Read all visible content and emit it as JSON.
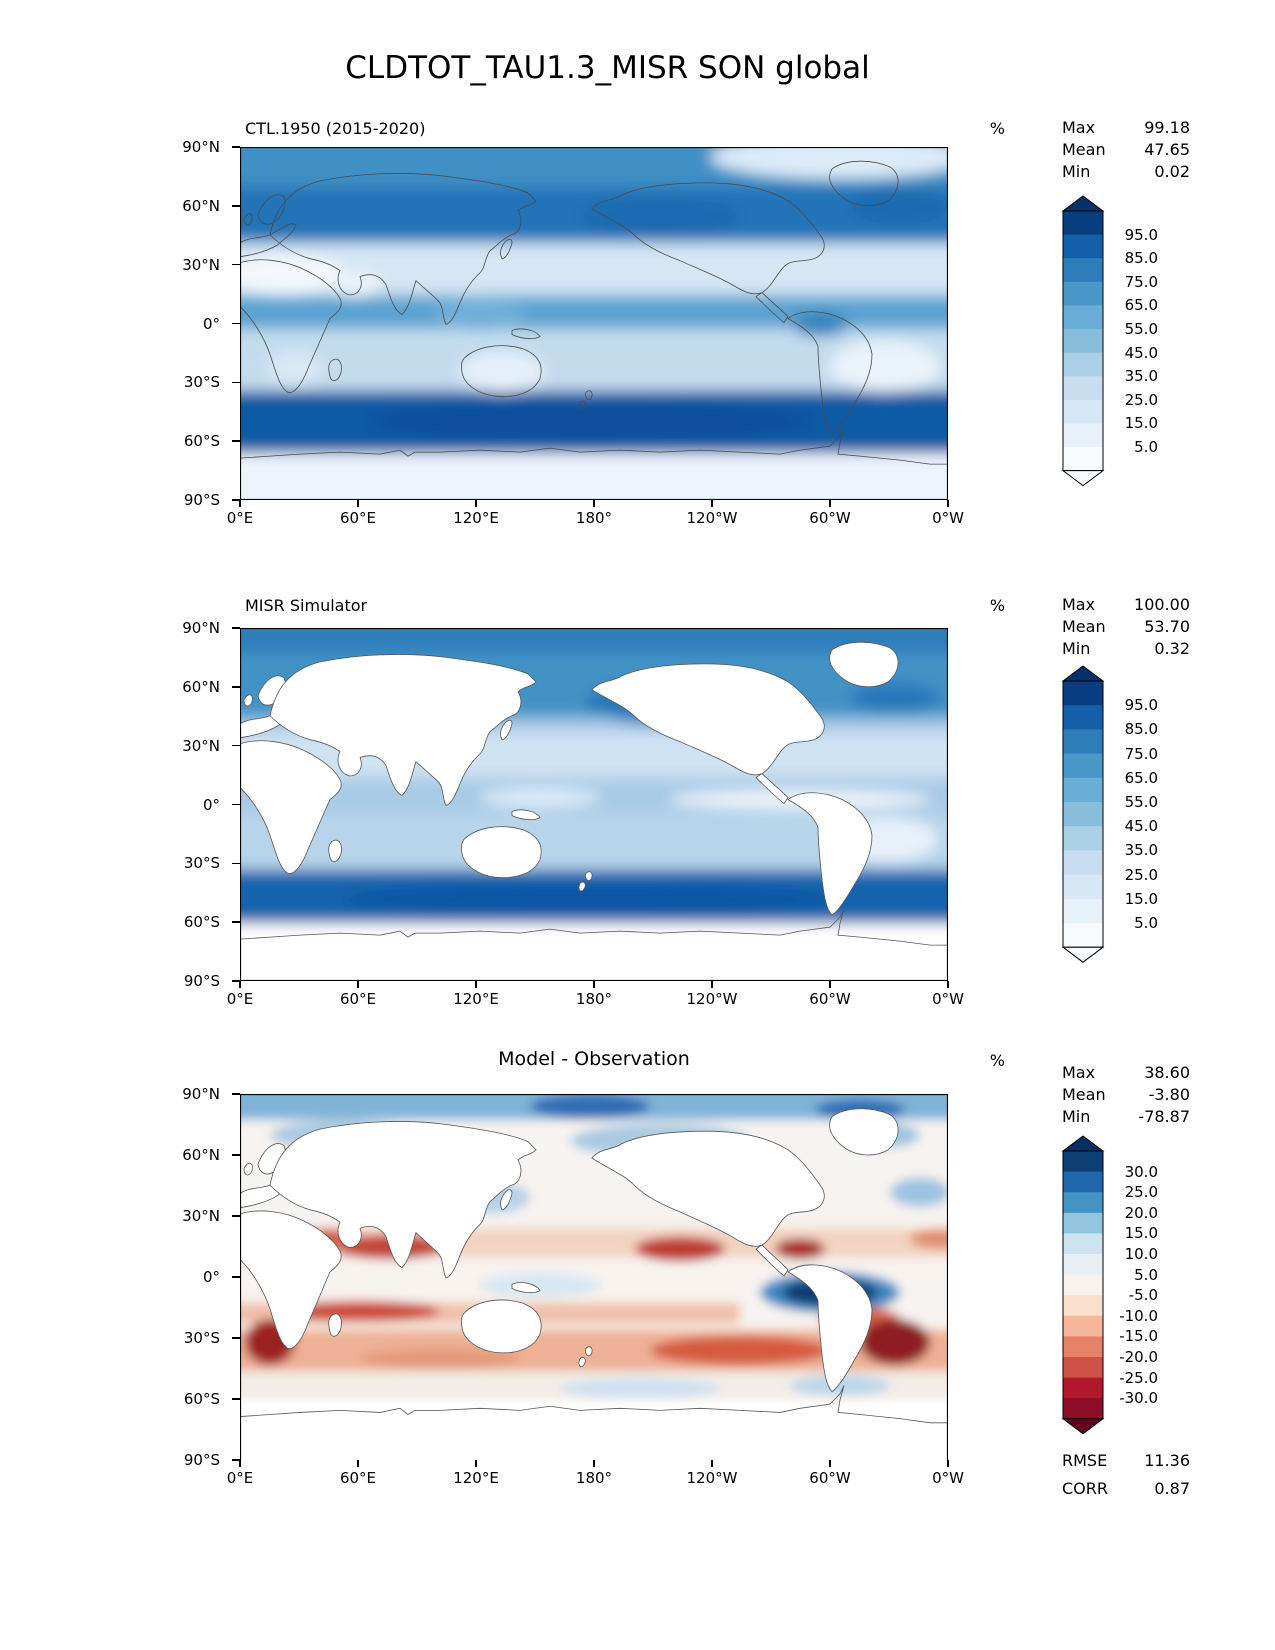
{
  "figure": {
    "title": "CLDTOT_TAU1.3_MISR SON global"
  },
  "axes": {
    "lat_ticks": [
      "90°N",
      "60°N",
      "30°N",
      "0°",
      "30°S",
      "60°S",
      "90°S"
    ],
    "lon_ticks": [
      "0°E",
      "60°E",
      "120°E",
      "180°",
      "120°W",
      "60°W",
      "0°W"
    ]
  },
  "panels": {
    "model": {
      "title": "CTL.1950 (2015-2020)",
      "unit": "%",
      "stats": {
        "max_label": "Max",
        "max": "99.18",
        "mean_label": "Mean",
        "mean": "47.65",
        "min_label": "Min",
        "min": "0.02"
      }
    },
    "obs": {
      "title": "MISR Simulator",
      "unit": "%",
      "stats": {
        "max_label": "Max",
        "max": "100.00",
        "mean_label": "Mean",
        "mean": "53.70",
        "min_label": "Min",
        "min": "0.32"
      }
    },
    "diff": {
      "title": "Model - Observation",
      "unit": "%",
      "stats": {
        "max_label": "Max",
        "max": "38.60",
        "mean_label": "Mean",
        "mean": "-3.80",
        "min_label": "Min",
        "min": "-78.87"
      },
      "metrics": {
        "rmse_label": "RMSE",
        "rmse": "11.36",
        "corr_label": "CORR",
        "corr": "0.87"
      }
    }
  },
  "colorbars": {
    "blues": {
      "top_arrow": "#08306b",
      "bottom_arrow": "#f7fbff",
      "segments_top_to_bottom": [
        "#083d7f",
        "#1460a8",
        "#2e7ebc",
        "#4a98c9",
        "#68aed6",
        "#88bedc",
        "#abd0e6",
        "#c8ddf0",
        "#d8e7f5",
        "#e7f1fa",
        "#f7fbff"
      ],
      "ticks": [
        "95.0",
        "85.0",
        "75.0",
        "65.0",
        "55.0",
        "45.0",
        "35.0",
        "25.0",
        "15.0",
        "5.0"
      ]
    },
    "rdbu": {
      "top_arrow": "#053061",
      "bottom_arrow": "#67001f",
      "segments_top_to_bottom": [
        "#0d3f74",
        "#2166ac",
        "#4393c3",
        "#92c5de",
        "#cde3f0",
        "#e8f0f6",
        "#f9f1ec",
        "#fbdfcd",
        "#f5b79b",
        "#e58267",
        "#cf5246",
        "#b2182b",
        "#8c0d25"
      ],
      "ticks": [
        "30.0",
        "25.0",
        "20.0",
        "15.0",
        "10.0",
        "5.0",
        "-5.0",
        "-10.0",
        "-15.0",
        "-20.0",
        "-25.0",
        "-30.0"
      ]
    }
  },
  "chart_data": [
    {
      "type": "heatmap",
      "panel": "top",
      "title": "CTL.1950 (2015-2020)",
      "variable": "CLDTOT_TAU1.3_MISR",
      "season": "SON",
      "region": "global",
      "units": "%",
      "colormap": "Blues",
      "levels": [
        5,
        15,
        25,
        35,
        45,
        55,
        65,
        75,
        85,
        95
      ],
      "stats": {
        "max": 99.18,
        "mean": 47.65,
        "min": 0.02
      },
      "x_ticks_deg_east": [
        0,
        60,
        120,
        180,
        240,
        300,
        360
      ],
      "y_ticks_deg_lat": [
        90,
        60,
        30,
        0,
        -30,
        -60,
        -90
      ],
      "description": "Total cloud fraction from model control run; high values (75-95%) in mid/high-latitude storm tracks, low values (<25%) over subtropical deserts and Antarctica."
    },
    {
      "type": "heatmap",
      "panel": "middle",
      "title": "MISR Simulator",
      "units": "%",
      "colormap": "Blues",
      "levels": [
        5,
        15,
        25,
        35,
        45,
        55,
        65,
        75,
        85,
        95
      ],
      "stats": {
        "max": 100.0,
        "mean": 53.7,
        "min": 0.32
      },
      "x_ticks_deg_east": [
        0,
        60,
        120,
        180,
        240,
        300,
        360
      ],
      "y_ticks_deg_lat": [
        90,
        60,
        30,
        0,
        -30,
        -60,
        -90
      ],
      "description": "MISR-simulated cloud fraction, ocean only; land masked white; dark blue Southern Ocean storm track band."
    },
    {
      "type": "heatmap",
      "panel": "bottom",
      "title": "Model - Observation",
      "units": "%",
      "colormap": "RdBu",
      "levels": [
        -30,
        -25,
        -20,
        -15,
        -10,
        -5,
        5,
        10,
        15,
        20,
        25,
        30
      ],
      "stats": {
        "max": 38.6,
        "mean": -3.8,
        "min": -78.87,
        "rmse": 11.36,
        "corr": 0.87
      },
      "x_ticks_deg_east": [
        0,
        60,
        120,
        180,
        240,
        300,
        360
      ],
      "y_ticks_deg_lat": [
        90,
        60,
        30,
        0,
        -30,
        -60,
        -90
      ],
      "description": "Model minus observation bias; strong negative (red) bias in subtropical stratocumulus regions and Southern Hemisphere subtropics, strong positive (blue) anomaly in equatorial central Pacific."
    }
  ]
}
